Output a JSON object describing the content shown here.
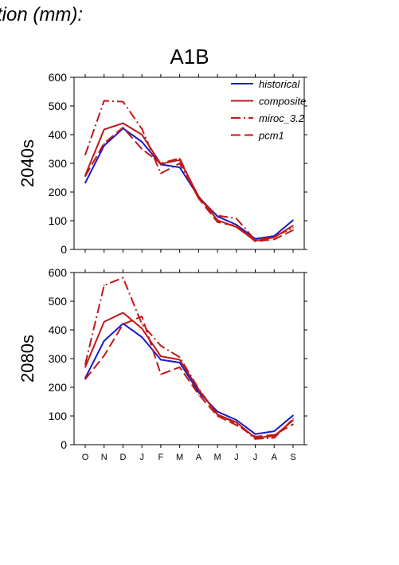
{
  "header_text": "tion (mm):",
  "colors": {
    "historical": "#1a1ac8",
    "model": "#c01818",
    "axis": "#000000"
  },
  "chart_data": [
    {
      "type": "line",
      "title": "A1B",
      "row_label": "2040s",
      "x": [
        "O",
        "N",
        "D",
        "J",
        "F",
        "M",
        "A",
        "M",
        "J",
        "J",
        "A",
        "S"
      ],
      "ylim": [
        0,
        600
      ],
      "yticks": [
        0,
        100,
        200,
        300,
        400,
        500,
        600
      ],
      "legend_position": "top-right",
      "series": [
        {
          "name": "historical",
          "values": [
            232,
            362,
            422,
            375,
            296,
            286,
            183,
            115,
            86,
            37,
            47,
            102
          ]
        },
        {
          "name": "composite",
          "values": [
            258,
            418,
            440,
            400,
            298,
            312,
            185,
            102,
            78,
            30,
            42,
            83
          ]
        },
        {
          "name": "miroc_3.2",
          "values": [
            330,
            518,
            515,
            420,
            265,
            300,
            178,
            118,
            108,
            32,
            45,
            75
          ]
        },
        {
          "name": "pcm1",
          "values": [
            255,
            370,
            425,
            350,
            300,
            318,
            178,
            95,
            82,
            28,
            35,
            67
          ]
        }
      ]
    },
    {
      "type": "line",
      "title": "",
      "row_label": "2080s",
      "x": [
        "O",
        "N",
        "D",
        "J",
        "F",
        "M",
        "A",
        "M",
        "J",
        "J",
        "A",
        "S"
      ],
      "ylim": [
        0,
        600
      ],
      "yticks": [
        0,
        100,
        200,
        300,
        400,
        500,
        600
      ],
      "series": [
        {
          "name": "historical",
          "values": [
            232,
            362,
            422,
            375,
            296,
            286,
            183,
            115,
            86,
            37,
            47,
            102
          ]
        },
        {
          "name": "composite",
          "values": [
            270,
            428,
            460,
            405,
            308,
            296,
            192,
            105,
            78,
            24,
            30,
            85
          ]
        },
        {
          "name": "miroc_3.2",
          "values": [
            280,
            555,
            582,
            420,
            345,
            305,
            195,
            104,
            75,
            20,
            24,
            90
          ]
        },
        {
          "name": "pcm1",
          "values": [
            228,
            310,
            420,
            447,
            245,
            270,
            175,
            100,
            68,
            28,
            34,
            71
          ]
        }
      ]
    }
  ]
}
